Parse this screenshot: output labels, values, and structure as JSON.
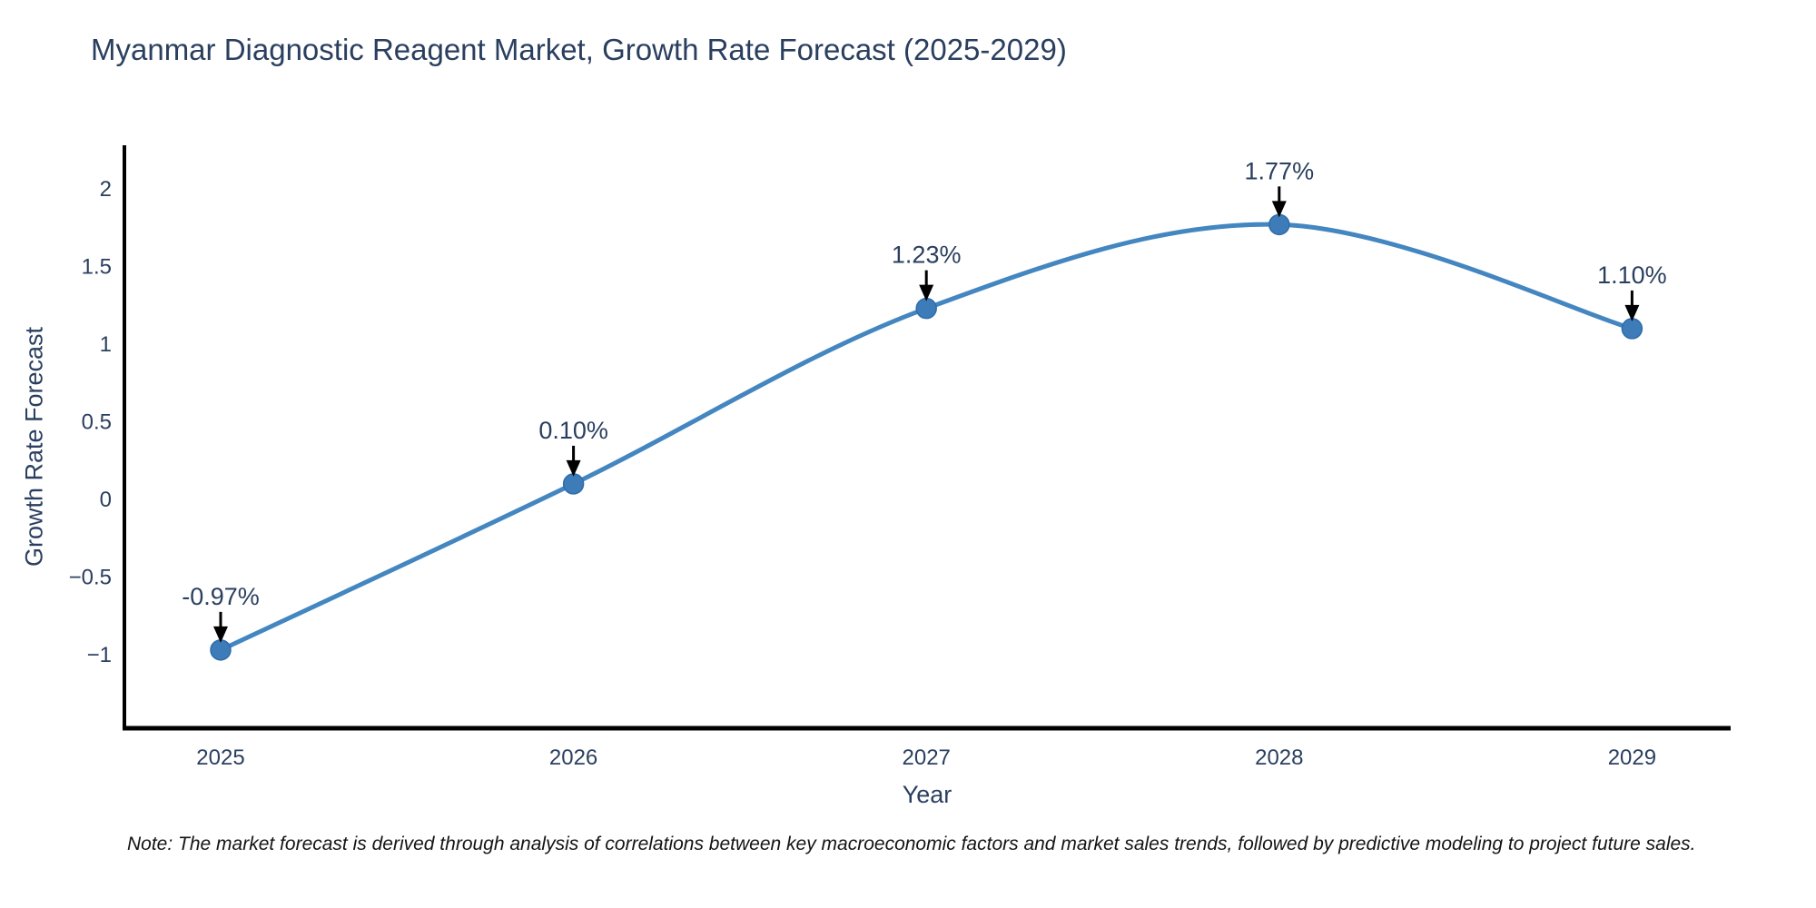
{
  "header": {
    "title": "Myanmar Diagnostic Reagent Market, Growth Rate Forecast (2025-2029)"
  },
  "footnote": {
    "text": "Note: The market forecast is derived through analysis of correlations between key macroeconomic factors and market sales trends, followed by predictive modeling to project future sales."
  },
  "chart_data": {
    "type": "line",
    "title": "Myanmar Diagnostic Reagent Market, Growth Rate Forecast (2025-2029)",
    "xlabel": "Year",
    "ylabel": "Growth Rate Forecast",
    "categories": [
      "2025",
      "2026",
      "2027",
      "2028",
      "2029"
    ],
    "series": [
      {
        "name": "Growth Rate Forecast",
        "values": [
          -0.97,
          0.1,
          1.23,
          1.77,
          1.1
        ],
        "point_labels": [
          "-0.97%",
          "0.10%",
          "1.23%",
          "1.77%",
          "1.10%"
        ]
      }
    ],
    "ylim": [
      -1.47,
      2.28
    ],
    "yticks": [
      2,
      1.5,
      1,
      0.5,
      0,
      -0.5,
      -1
    ],
    "ytick_labels": [
      "2",
      "1.5",
      "1",
      "0.5",
      "0",
      "−0.5",
      "−1"
    ],
    "grid": false,
    "legend_position": "none",
    "line_shape": "spline",
    "colors": {
      "line": "#4386c0",
      "marker": "#3d7cb8",
      "marker_edge": "#2f6da9",
      "axis_line": "#000000",
      "annotation_arrow": "#000000",
      "text": "#2a3f5f"
    }
  }
}
